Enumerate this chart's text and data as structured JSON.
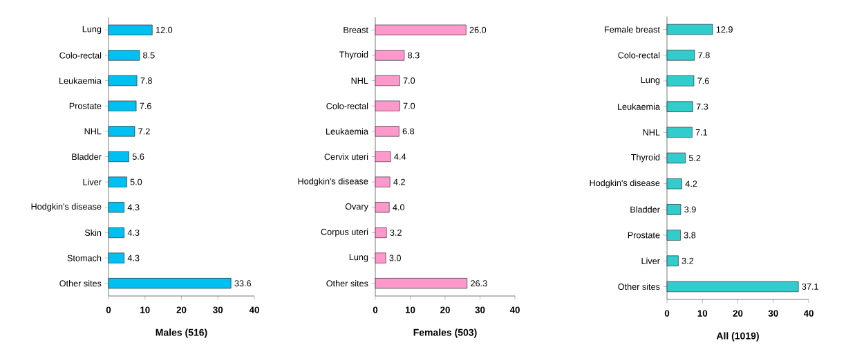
{
  "chart_data": [
    {
      "type": "bar",
      "orientation": "horizontal",
      "xlabel": "Males (516)",
      "categories": [
        "Lung",
        "Colo-rectal",
        "Leukaemia",
        "Prostate",
        "NHL",
        "Bladder",
        "Liver",
        "Hodgkin's disease",
        "Skin",
        "Stomach",
        "Other sites"
      ],
      "values": [
        12.0,
        8.5,
        7.8,
        7.6,
        7.2,
        5.6,
        5.0,
        4.3,
        4.3,
        4.3,
        33.6
      ],
      "value_labels": [
        "12.0",
        "8.5",
        "7.8",
        "7.6",
        "7.2",
        "5.6",
        "5.0",
        "4.3",
        "4.3",
        "4.3",
        "33.6"
      ],
      "color": "#00bff3",
      "xlim": [
        0,
        40
      ],
      "xticks": [
        0,
        10,
        20,
        30,
        40
      ]
    },
    {
      "type": "bar",
      "orientation": "horizontal",
      "xlabel": "Females (503)",
      "categories": [
        "Breast",
        "Thyroid",
        "NHL",
        "Colo-rectal",
        "Leukaemia",
        "Cervix uteri",
        "Hodgkin's disease",
        "Ovary",
        "Corpus uteri",
        "Lung",
        "Other sites"
      ],
      "values": [
        26.0,
        8.3,
        7.0,
        7.0,
        6.8,
        4.4,
        4.2,
        4.0,
        3.2,
        3.0,
        26.3
      ],
      "value_labels": [
        "26.0",
        "8.3",
        "7.0",
        "7.0",
        "6.8",
        "4.4",
        "4.2",
        "4.0",
        "3.2",
        "3.0",
        "26.3"
      ],
      "color": "#ff99cc",
      "xlim": [
        0,
        40
      ],
      "xticks": [
        0,
        10,
        20,
        30,
        40
      ]
    },
    {
      "type": "bar",
      "orientation": "horizontal",
      "xlabel": "All (1019)",
      "categories": [
        "Female breast",
        "Colo-rectal",
        "Lung",
        "Leukaemia",
        "NHL",
        "Thyroid",
        "Hodgkin's disease",
        "Bladder",
        "Prostate",
        "Liver",
        "Other sites"
      ],
      "values": [
        12.9,
        7.8,
        7.6,
        7.3,
        7.1,
        5.2,
        4.2,
        3.9,
        3.8,
        3.2,
        37.1
      ],
      "value_labels": [
        "12.9",
        "7.8",
        "7.6",
        "7.3",
        "7.1",
        "5.2",
        "4.2",
        "3.9",
        "3.8",
        "3.2",
        "37.1"
      ],
      "color": "#33cccc",
      "xlim": [
        0,
        40
      ],
      "xticks": [
        0,
        10,
        20,
        30,
        40
      ]
    }
  ]
}
